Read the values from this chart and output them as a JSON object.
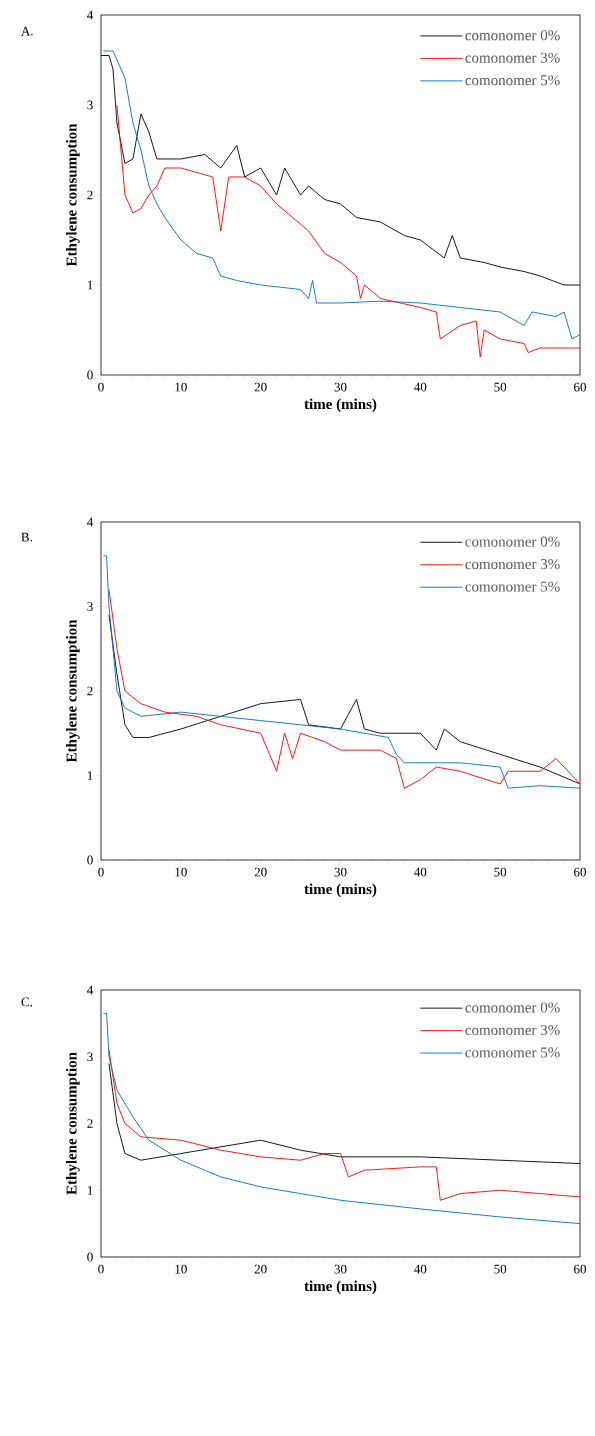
{
  "chart_data": [
    {
      "type": "line",
      "xlabel": "time (mins)",
      "ylabel": "Ethylene consumption",
      "annotations": [
        "A."
      ],
      "xlim": [
        0,
        60
      ],
      "ylim": [
        0,
        4
      ],
      "xticks": [
        0,
        10,
        20,
        30,
        40,
        50,
        60
      ],
      "yticks": [
        0,
        1,
        2,
        3,
        4
      ],
      "legend": "top right",
      "series": [
        {
          "name": "comonomer 0%",
          "color": "#000000",
          "x": [
            0,
            1,
            1.5,
            2,
            3,
            4,
            5,
            6,
            7,
            10,
            13,
            15,
            17,
            18,
            20,
            22,
            23,
            25,
            26,
            28,
            30,
            32,
            35,
            38,
            40,
            43,
            44,
            45,
            48,
            50,
            53,
            55,
            58,
            60
          ],
          "values": [
            3.55,
            3.55,
            3.4,
            2.8,
            2.35,
            2.4,
            2.9,
            2.7,
            2.4,
            2.4,
            2.45,
            2.3,
            2.55,
            2.2,
            2.3,
            2.0,
            2.3,
            2.0,
            2.1,
            1.95,
            1.9,
            1.75,
            1.7,
            1.55,
            1.5,
            1.3,
            1.55,
            1.3,
            1.25,
            1.2,
            1.15,
            1.1,
            1.0,
            1.0
          ]
        },
        {
          "name": "comonomer 3%",
          "color": "#ff0000",
          "x": [
            2,
            3,
            4,
            5,
            6,
            7,
            8,
            10,
            14,
            15,
            16,
            18,
            20,
            22,
            24,
            26,
            28,
            30,
            32,
            32.5,
            33,
            35,
            40,
            42,
            42.5,
            45,
            47,
            47.5,
            48,
            50,
            53,
            53.5,
            55,
            60
          ],
          "values": [
            3.0,
            2.0,
            1.8,
            1.85,
            2.0,
            2.1,
            2.3,
            2.3,
            2.2,
            1.6,
            2.2,
            2.2,
            2.1,
            1.9,
            1.75,
            1.6,
            1.35,
            1.25,
            1.1,
            0.85,
            1.0,
            0.85,
            0.75,
            0.7,
            0.4,
            0.55,
            0.6,
            0.2,
            0.5,
            0.4,
            0.35,
            0.25,
            0.3,
            0.3
          ]
        },
        {
          "name": "comonomer 5%",
          "color": "#0070c0",
          "x": [
            0.3,
            1.5,
            3,
            4,
            5,
            6,
            7,
            8,
            10,
            12,
            14,
            15,
            17,
            20,
            25,
            26,
            26.5,
            27,
            30,
            35,
            40,
            45,
            50,
            53,
            54,
            57,
            58,
            59,
            60
          ],
          "values": [
            3.6,
            3.6,
            3.3,
            2.8,
            2.5,
            2.1,
            1.9,
            1.75,
            1.5,
            1.35,
            1.3,
            1.1,
            1.05,
            1.0,
            0.95,
            0.85,
            1.05,
            0.8,
            0.8,
            0.82,
            0.8,
            0.75,
            0.7,
            0.55,
            0.7,
            0.65,
            0.7,
            0.4,
            0.45
          ]
        }
      ]
    },
    {
      "type": "line",
      "xlabel": "time (mins)",
      "ylabel": "Ethylene consumption",
      "annotations": [
        "B."
      ],
      "xlim": [
        0,
        60
      ],
      "ylim": [
        0,
        4
      ],
      "xticks": [
        0,
        10,
        20,
        30,
        40,
        50,
        60
      ],
      "yticks": [
        0,
        1,
        2,
        3,
        4
      ],
      "legend": "top right",
      "series": [
        {
          "name": "comonomer 0%",
          "color": "#000000",
          "x": [
            1,
            2,
            3,
            4,
            6,
            10,
            15,
            20,
            25,
            26,
            30,
            32,
            33,
            35,
            40,
            42,
            43,
            45,
            50,
            55,
            60
          ],
          "values": [
            2.9,
            2.2,
            1.6,
            1.45,
            1.45,
            1.55,
            1.7,
            1.85,
            1.9,
            1.6,
            1.55,
            1.9,
            1.55,
            1.5,
            1.5,
            1.3,
            1.55,
            1.4,
            1.25,
            1.1,
            0.9
          ]
        },
        {
          "name": "comonomer 3%",
          "color": "#ff0000",
          "x": [
            1,
            2,
            3,
            5,
            8,
            12,
            15,
            20,
            22,
            23,
            24,
            25,
            28,
            30,
            35,
            37,
            38,
            40,
            42,
            45,
            50,
            51,
            55,
            57,
            60
          ],
          "values": [
            3.2,
            2.5,
            2.0,
            1.85,
            1.75,
            1.7,
            1.6,
            1.5,
            1.05,
            1.5,
            1.2,
            1.5,
            1.4,
            1.3,
            1.3,
            1.2,
            0.85,
            0.95,
            1.1,
            1.05,
            0.9,
            1.05,
            1.05,
            1.2,
            0.9
          ]
        },
        {
          "name": "comonomer 5%",
          "color": "#0070c0",
          "x": [
            0.3,
            0.7,
            1,
            2,
            3,
            5,
            10,
            15,
            20,
            25,
            30,
            36,
            37,
            38,
            45,
            50,
            51,
            55,
            60
          ],
          "values": [
            3.6,
            3.6,
            3.0,
            2.0,
            1.8,
            1.7,
            1.75,
            1.7,
            1.65,
            1.6,
            1.55,
            1.45,
            1.25,
            1.15,
            1.15,
            1.1,
            0.85,
            0.88,
            0.85
          ]
        }
      ]
    },
    {
      "type": "line",
      "xlabel": "time (mins)",
      "ylabel": "Ethylene consumption",
      "annotations": [
        "C."
      ],
      "xlim": [
        0,
        60
      ],
      "ylim": [
        0,
        4
      ],
      "xticks": [
        0,
        10,
        20,
        30,
        40,
        50,
        60
      ],
      "yticks": [
        0,
        1,
        2,
        3,
        4
      ],
      "legend": "top right",
      "series": [
        {
          "name": "comonomer 0%",
          "color": "#000000",
          "x": [
            1,
            2,
            3,
            5,
            10,
            15,
            20,
            25,
            30,
            40,
            50,
            60
          ],
          "values": [
            2.9,
            2.0,
            1.55,
            1.45,
            1.55,
            1.65,
            1.75,
            1.6,
            1.5,
            1.5,
            1.45,
            1.4
          ]
        },
        {
          "name": "comonomer 3%",
          "color": "#ff0000",
          "x": [
            1,
            2,
            3,
            5,
            10,
            15,
            20,
            25,
            28,
            30,
            31,
            33,
            40,
            42,
            42.5,
            45,
            50,
            55,
            60
          ],
          "values": [
            3.1,
            2.3,
            2.0,
            1.8,
            1.75,
            1.6,
            1.5,
            1.45,
            1.55,
            1.55,
            1.2,
            1.3,
            1.35,
            1.35,
            0.85,
            0.95,
            1.0,
            0.95,
            0.9
          ]
        },
        {
          "name": "comonomer 5%",
          "color": "#0070c0",
          "x": [
            0.3,
            0.7,
            1,
            2,
            4,
            6,
            10,
            15,
            20,
            25,
            30,
            40,
            50,
            60
          ],
          "values": [
            3.65,
            3.65,
            3.0,
            2.5,
            2.1,
            1.75,
            1.45,
            1.2,
            1.05,
            0.95,
            0.85,
            0.72,
            0.6,
            0.5
          ]
        }
      ]
    }
  ]
}
